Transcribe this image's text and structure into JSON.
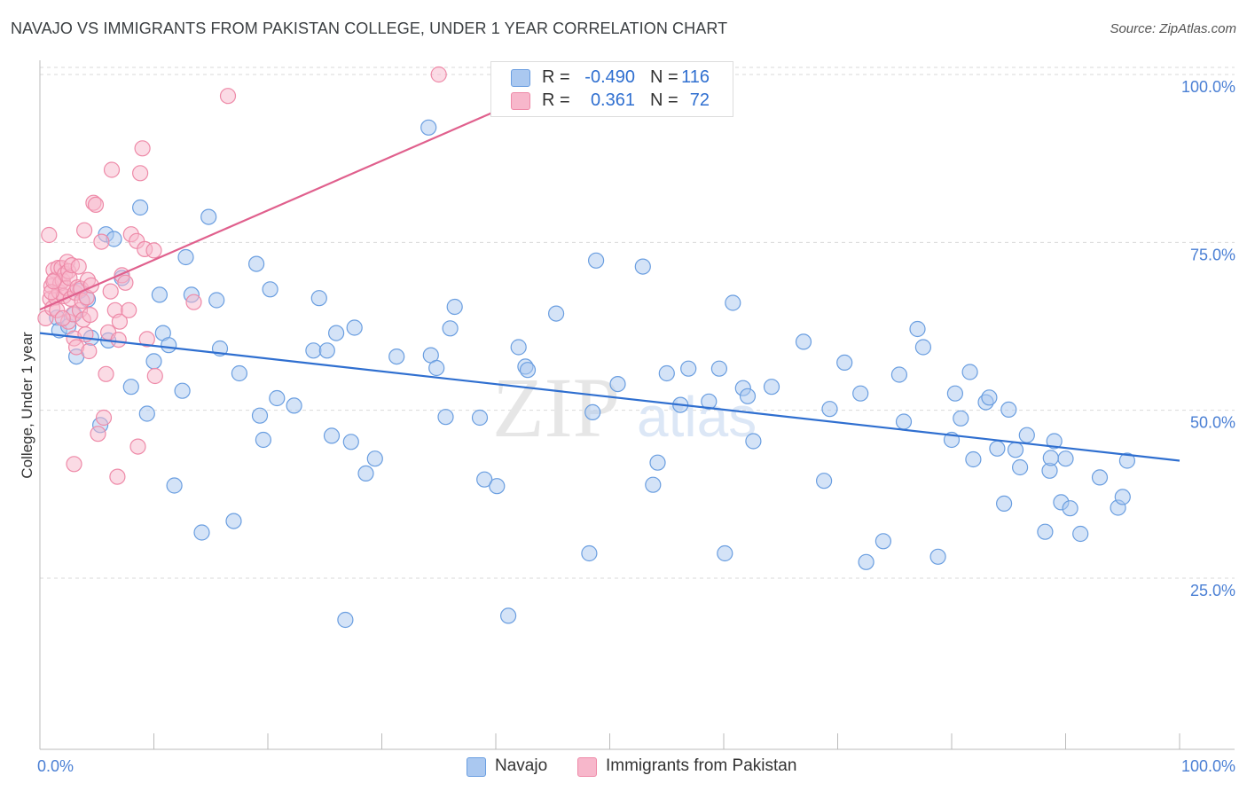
{
  "header": {
    "title": "NAVAJO VS IMMIGRANTS FROM PAKISTAN COLLEGE, UNDER 1 YEAR CORRELATION CHART",
    "source": "Source: ZipAtlas.com"
  },
  "watermark": {
    "zip": "ZIP",
    "atlas": "atlas"
  },
  "legend": {
    "rows": [
      {
        "r_label": "R =",
        "r_value": "-0.490",
        "n_label": "N =",
        "n_value": "116"
      },
      {
        "r_label": "R =",
        "r_value": "0.361",
        "n_label": "N =",
        "n_value": "72"
      }
    ]
  },
  "bottom_legend": {
    "series1": "Navajo",
    "series2": "Immigrants from Pakistan"
  },
  "colors": {
    "navajo_fill": "#aac8f0",
    "navajo_stroke": "#6a9ee0",
    "navajo_line": "#2f6fd0",
    "pakistan_fill": "#f7b7cb",
    "pakistan_stroke": "#ee8aa8",
    "pakistan_line": "#e0608d",
    "tick": "#4a7fd4",
    "grid": "#d9d9d9"
  },
  "chart_data": {
    "type": "scatter",
    "title": "NAVAJO VS IMMIGRANTS FROM PAKISTAN COLLEGE, UNDER 1 YEAR CORRELATION CHART",
    "xlabel": "",
    "ylabel": "College, Under 1 year",
    "xlim": [
      0,
      100
    ],
    "ylim": [
      0,
      102
    ],
    "x_tick_labels": [
      "0.0%",
      "100.0%"
    ],
    "y_ticks": [
      {
        "value": 25,
        "label": "25.0%"
      },
      {
        "value": 50,
        "label": "50.0%"
      },
      {
        "value": 75,
        "label": "75.0%"
      },
      {
        "value": 100,
        "label": "100.0%"
      }
    ],
    "grid": true,
    "series": [
      {
        "name": "Navajo",
        "R": -0.49,
        "N": 116,
        "trend": {
          "x": [
            0,
            100
          ],
          "y": [
            61.5,
            42.5
          ]
        },
        "points": [
          [
            1.5,
            63.8
          ],
          [
            1.7,
            61.9
          ],
          [
            2.5,
            62.5
          ],
          [
            3.0,
            64.3
          ],
          [
            3.2,
            58.0
          ],
          [
            3.5,
            67.8
          ],
          [
            4.2,
            66.5
          ],
          [
            4.5,
            60.8
          ],
          [
            5.3,
            47.8
          ],
          [
            5.8,
            76.2
          ],
          [
            6.5,
            75.5
          ],
          [
            6.0,
            60.4
          ],
          [
            7.2,
            69.7
          ],
          [
            8.0,
            53.5
          ],
          [
            8.8,
            80.2
          ],
          [
            9.4,
            49.5
          ],
          [
            10.0,
            57.3
          ],
          [
            10.5,
            67.2
          ],
          [
            10.8,
            61.5
          ],
          [
            11.3,
            59.7
          ],
          [
            11.8,
            38.8
          ],
          [
            12.5,
            52.9
          ],
          [
            12.8,
            72.8
          ],
          [
            13.3,
            67.2
          ],
          [
            14.2,
            31.8
          ],
          [
            14.8,
            78.8
          ],
          [
            15.8,
            59.2
          ],
          [
            15.5,
            66.4
          ],
          [
            17.0,
            33.5
          ],
          [
            17.5,
            55.5
          ],
          [
            19.0,
            71.8
          ],
          [
            19.3,
            49.2
          ],
          [
            19.6,
            45.6
          ],
          [
            20.2,
            68.0
          ],
          [
            20.8,
            51.8
          ],
          [
            22.3,
            50.7
          ],
          [
            24.0,
            58.9
          ],
          [
            24.5,
            66.7
          ],
          [
            25.2,
            58.9
          ],
          [
            25.6,
            46.2
          ],
          [
            26.0,
            61.5
          ],
          [
            26.8,
            18.8
          ],
          [
            27.3,
            45.3
          ],
          [
            27.6,
            62.3
          ],
          [
            28.6,
            40.6
          ],
          [
            29.4,
            42.8
          ],
          [
            31.3,
            58.0
          ],
          [
            34.1,
            92.1
          ],
          [
            34.3,
            58.2
          ],
          [
            34.8,
            56.3
          ],
          [
            35.6,
            49.0
          ],
          [
            36.0,
            62.2
          ],
          [
            36.4,
            65.4
          ],
          [
            38.6,
            48.9
          ],
          [
            39.0,
            39.7
          ],
          [
            40.1,
            38.7
          ],
          [
            41.1,
            19.4
          ],
          [
            42.0,
            59.4
          ],
          [
            42.6,
            56.5
          ],
          [
            42.8,
            56.0
          ],
          [
            45.3,
            64.4
          ],
          [
            48.2,
            28.7
          ],
          [
            48.5,
            49.7
          ],
          [
            48.8,
            72.3
          ],
          [
            50.7,
            53.9
          ],
          [
            52.9,
            71.4
          ],
          [
            53.8,
            38.9
          ],
          [
            54.2,
            42.2
          ],
          [
            55.0,
            55.5
          ],
          [
            56.2,
            50.8
          ],
          [
            56.9,
            56.2
          ],
          [
            58.7,
            51.3
          ],
          [
            59.6,
            56.2
          ],
          [
            60.1,
            28.7
          ],
          [
            60.8,
            66.0
          ],
          [
            61.7,
            53.3
          ],
          [
            62.1,
            52.1
          ],
          [
            62.6,
            45.4
          ],
          [
            64.2,
            53.5
          ],
          [
            67.0,
            60.2
          ],
          [
            68.8,
            39.5
          ],
          [
            69.3,
            50.2
          ],
          [
            70.6,
            57.1
          ],
          [
            72.0,
            52.5
          ],
          [
            72.5,
            27.4
          ],
          [
            74.0,
            30.5
          ],
          [
            75.4,
            55.3
          ],
          [
            75.8,
            48.3
          ],
          [
            77.0,
            62.1
          ],
          [
            77.5,
            59.4
          ],
          [
            78.8,
            28.2
          ],
          [
            80.0,
            45.6
          ],
          [
            80.3,
            52.5
          ],
          [
            80.8,
            48.8
          ],
          [
            81.6,
            55.7
          ],
          [
            81.9,
            42.7
          ],
          [
            83.0,
            51.2
          ],
          [
            83.3,
            51.9
          ],
          [
            84.0,
            44.3
          ],
          [
            84.6,
            36.1
          ],
          [
            85.0,
            50.1
          ],
          [
            85.6,
            44.1
          ],
          [
            86.0,
            41.5
          ],
          [
            86.6,
            46.3
          ],
          [
            88.2,
            31.9
          ],
          [
            88.6,
            41.0
          ],
          [
            89.0,
            45.4
          ],
          [
            89.6,
            36.3
          ],
          [
            90.4,
            35.4
          ],
          [
            91.3,
            31.6
          ],
          [
            90.0,
            42.8
          ],
          [
            93.0,
            40.0
          ],
          [
            94.6,
            35.5
          ],
          [
            95.0,
            37.1
          ],
          [
            95.4,
            42.5
          ],
          [
            88.7,
            42.9
          ]
        ]
      },
      {
        "name": "Immigrants from Pakistan",
        "R": 0.361,
        "N": 72,
        "trend": {
          "x": [
            0,
            40.5
          ],
          "y": [
            65.0,
            94.9
          ]
        },
        "points": [
          [
            0.5,
            63.7
          ],
          [
            0.8,
            76.1
          ],
          [
            0.9,
            66.6
          ],
          [
            1.0,
            68.5
          ],
          [
            1.1,
            65.2
          ],
          [
            1.2,
            70.9
          ],
          [
            1.3,
            69.4
          ],
          [
            1.4,
            66.8
          ],
          [
            1.5,
            64.9
          ],
          [
            1.6,
            71.2
          ],
          [
            1.7,
            67.6
          ],
          [
            1.8,
            68.9
          ],
          [
            1.9,
            71.2
          ],
          [
            2.0,
            69.3
          ],
          [
            2.1,
            67.0
          ],
          [
            2.2,
            70.3
          ],
          [
            2.3,
            68.2
          ],
          [
            2.4,
            72.1
          ],
          [
            2.5,
            70.7
          ],
          [
            2.5,
            63.2
          ],
          [
            2.6,
            69.7
          ],
          [
            2.7,
            66.6
          ],
          [
            2.8,
            71.6
          ],
          [
            2.9,
            64.3
          ],
          [
            3.0,
            60.7
          ],
          [
            3.1,
            67.5
          ],
          [
            3.2,
            59.4
          ],
          [
            3.3,
            68.3
          ],
          [
            3.4,
            71.4
          ],
          [
            3.5,
            64.9
          ],
          [
            3.6,
            68.1
          ],
          [
            3.7,
            66.3
          ],
          [
            3.8,
            63.5
          ],
          [
            3.9,
            76.8
          ],
          [
            4.0,
            61.3
          ],
          [
            4.1,
            66.8
          ],
          [
            4.2,
            69.4
          ],
          [
            4.3,
            58.8
          ],
          [
            4.4,
            64.2
          ],
          [
            4.5,
            68.6
          ],
          [
            4.7,
            80.9
          ],
          [
            4.9,
            80.6
          ],
          [
            5.1,
            46.5
          ],
          [
            5.4,
            75.1
          ],
          [
            5.6,
            48.9
          ],
          [
            5.8,
            55.4
          ],
          [
            6.0,
            61.6
          ],
          [
            6.2,
            67.7
          ],
          [
            6.3,
            85.8
          ],
          [
            6.6,
            64.9
          ],
          [
            6.9,
            60.5
          ],
          [
            7.0,
            63.2
          ],
          [
            7.2,
            70.1
          ],
          [
            7.5,
            69.0
          ],
          [
            7.8,
            64.9
          ],
          [
            8.0,
            76.2
          ],
          [
            8.5,
            75.2
          ],
          [
            8.6,
            44.6
          ],
          [
            8.8,
            85.3
          ],
          [
            9.0,
            89.0
          ],
          [
            9.2,
            74.0
          ],
          [
            9.4,
            60.6
          ],
          [
            10.0,
            73.8
          ],
          [
            10.1,
            55.1
          ],
          [
            13.5,
            66.1
          ],
          [
            16.5,
            96.8
          ],
          [
            35.0,
            100.0
          ],
          [
            3.0,
            42.0
          ],
          [
            6.8,
            40.1
          ],
          [
            1.0,
            67.6
          ],
          [
            1.2,
            69.2
          ],
          [
            2.0,
            63.7
          ]
        ]
      }
    ]
  }
}
